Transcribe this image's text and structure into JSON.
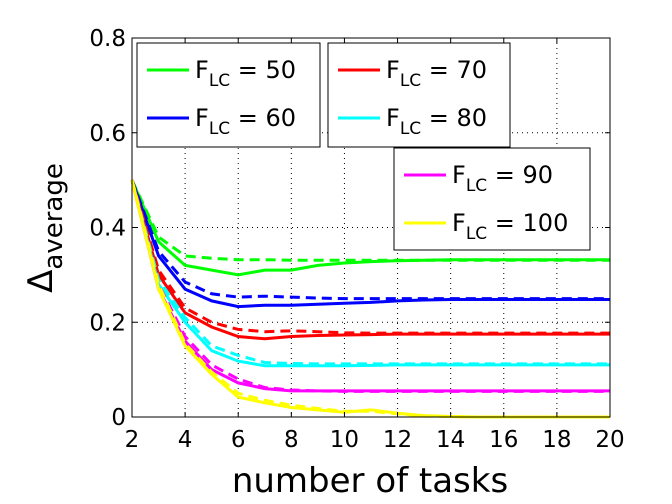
{
  "chart_data": {
    "type": "line",
    "xlabel": "number of tasks",
    "ylabel": "Δ",
    "ylabel_sub": "average",
    "xlim": [
      2,
      20
    ],
    "ylim": [
      0,
      0.8
    ],
    "x_ticks": [
      "2",
      "4",
      "6",
      "8",
      "10",
      "12",
      "14",
      "16",
      "18",
      "20"
    ],
    "y_ticks": [
      "0",
      "0.2",
      "0.4",
      "0.6",
      "0.8"
    ],
    "grid": true,
    "legend_placement": "top",
    "legend_groups": [
      [
        0,
        1
      ],
      [
        2,
        3
      ],
      [
        4,
        5
      ]
    ],
    "x": [
      2,
      3,
      4,
      5,
      6,
      7,
      8,
      9,
      10,
      11,
      12,
      13,
      14,
      15,
      16,
      17,
      18,
      19,
      20
    ],
    "series": [
      {
        "name": "F",
        "name_sub": "LC",
        "name_suffix": " = 50",
        "color": "#00ff00",
        "solid": [
          0.5,
          0.37,
          0.32,
          0.31,
          0.3,
          0.31,
          0.31,
          0.32,
          0.325,
          0.328,
          0.33,
          0.331,
          0.332,
          0.332,
          0.332,
          0.332,
          0.332,
          0.332,
          0.332
        ],
        "dashed": [
          0.5,
          0.38,
          0.34,
          0.335,
          0.332,
          0.332,
          0.331,
          0.331,
          0.331,
          0.331,
          0.331,
          0.331,
          0.331,
          0.331,
          0.331,
          0.331,
          0.331,
          0.331,
          0.331
        ]
      },
      {
        "name": "F",
        "name_sub": "LC",
        "name_suffix": " = 60",
        "color": "#0000ff",
        "solid": [
          0.5,
          0.34,
          0.27,
          0.245,
          0.233,
          0.236,
          0.236,
          0.238,
          0.24,
          0.242,
          0.245,
          0.247,
          0.248,
          0.248,
          0.248,
          0.248,
          0.248,
          0.248,
          0.248
        ],
        "dashed": [
          0.5,
          0.35,
          0.285,
          0.26,
          0.253,
          0.255,
          0.253,
          0.251,
          0.25,
          0.25,
          0.25,
          0.25,
          0.25,
          0.25,
          0.25,
          0.25,
          0.25,
          0.25,
          0.25
        ]
      },
      {
        "name": "F",
        "name_sub": "LC",
        "name_suffix": " = 70",
        "color": "#ff0000",
        "solid": [
          0.5,
          0.3,
          0.22,
          0.19,
          0.17,
          0.165,
          0.17,
          0.172,
          0.173,
          0.174,
          0.175,
          0.175,
          0.175,
          0.175,
          0.175,
          0.175,
          0.175,
          0.175,
          0.175
        ],
        "dashed": [
          0.5,
          0.31,
          0.23,
          0.2,
          0.185,
          0.18,
          0.182,
          0.18,
          0.178,
          0.177,
          0.177,
          0.177,
          0.177,
          0.177,
          0.177,
          0.177,
          0.177,
          0.177,
          0.177
        ]
      },
      {
        "name": "F",
        "name_sub": "LC",
        "name_suffix": " = 80",
        "color": "#00ffff",
        "solid": [
          0.5,
          0.28,
          0.2,
          0.14,
          0.118,
          0.108,
          0.108,
          0.108,
          0.108,
          0.109,
          0.11,
          0.11,
          0.11,
          0.11,
          0.11,
          0.11,
          0.11,
          0.11,
          0.11
        ],
        "dashed": [
          0.5,
          0.29,
          0.21,
          0.15,
          0.13,
          0.115,
          0.113,
          0.112,
          0.112,
          0.112,
          0.112,
          0.112,
          0.112,
          0.112,
          0.112,
          0.112,
          0.112,
          0.112,
          0.112
        ]
      },
      {
        "name": "F",
        "name_sub": "LC",
        "name_suffix": " = 90",
        "color": "#ff00ff",
        "solid": [
          0.5,
          0.27,
          0.16,
          0.1,
          0.072,
          0.06,
          0.055,
          0.055,
          0.055,
          0.055,
          0.055,
          0.055,
          0.055,
          0.055,
          0.055,
          0.055,
          0.055,
          0.055,
          0.055
        ],
        "dashed": [
          0.5,
          0.28,
          0.17,
          0.11,
          0.08,
          0.062,
          0.057,
          0.055,
          0.054,
          0.054,
          0.054,
          0.054,
          0.054,
          0.054,
          0.054,
          0.054,
          0.054,
          0.054,
          0.054
        ]
      },
      {
        "name": "F",
        "name_sub": "LC",
        "name_suffix": " = 100",
        "color": "#ffff00",
        "solid": [
          0.5,
          0.27,
          0.15,
          0.09,
          0.042,
          0.03,
          0.02,
          0.015,
          0.01,
          0.015,
          0.008,
          0.003,
          0.001,
          0.0,
          0.0,
          0.0,
          0.0,
          0.0,
          0.0
        ],
        "dashed": [
          0.5,
          0.28,
          0.155,
          0.095,
          0.05,
          0.035,
          0.025,
          0.018,
          0.012,
          0.012,
          0.007,
          0.002,
          0.001,
          0.0,
          0.0,
          0.0,
          0.0,
          0.0,
          0.0
        ]
      }
    ]
  }
}
